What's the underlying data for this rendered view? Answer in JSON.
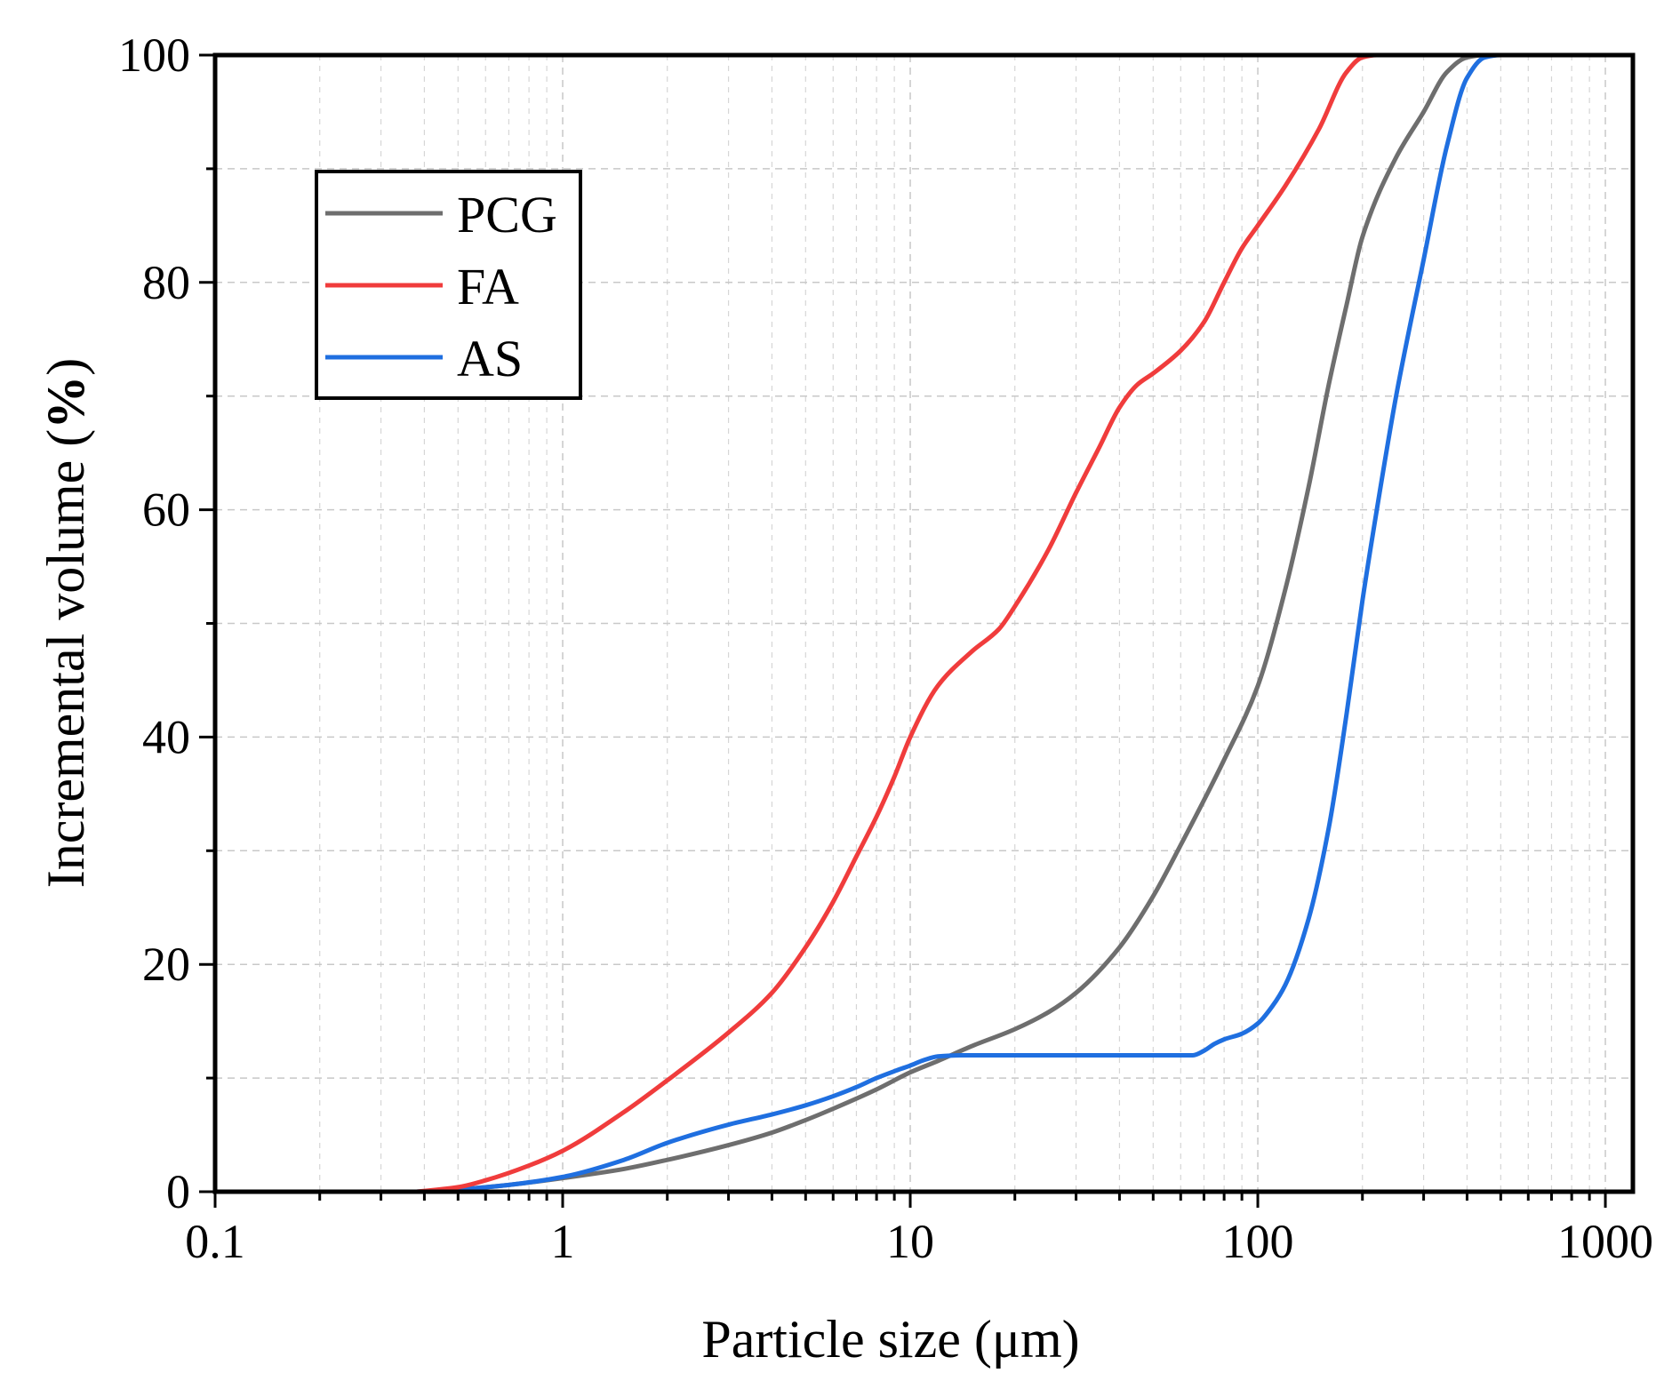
{
  "chart_data": {
    "type": "line",
    "title": "",
    "xlabel": "Particle size (μm)",
    "ylabel_main": "Incremental volume (",
    "ylabel_bold": "%",
    "ylabel_end": ")",
    "xscale": "log",
    "xlim": [
      0.1,
      1200
    ],
    "ylim": [
      0,
      100
    ],
    "grid": true,
    "legend_position": "top-left",
    "x_tick_labels": [
      "0.1",
      "1",
      "10",
      "100",
      "1000"
    ],
    "y_tick_labels": [
      "0",
      "20",
      "40",
      "60",
      "80",
      "100"
    ],
    "series": [
      {
        "name": "PCG",
        "color": "#6e6e6e",
        "x": [
          0.38,
          0.5,
          0.7,
          1,
          1.5,
          2,
          3,
          4,
          5,
          6,
          8,
          10,
          12,
          15,
          20,
          25,
          30,
          40,
          50,
          60,
          80,
          100,
          120,
          140,
          160,
          180,
          200,
          250,
          300,
          350,
          400,
          450,
          500,
          1200
        ],
        "y": [
          0,
          0.2,
          0.6,
          1.2,
          2,
          2.8,
          4.1,
          5.2,
          6.3,
          7.3,
          9,
          10.5,
          11.5,
          12.8,
          14.3,
          15.8,
          17.5,
          21.5,
          26,
          30.5,
          38,
          44.5,
          53,
          62,
          71,
          78,
          84,
          91,
          95,
          98.5,
          99.8,
          100,
          100,
          100
        ]
      },
      {
        "name": "FA",
        "color": "#f03c3c",
        "x": [
          0.38,
          0.5,
          0.6,
          0.8,
          1,
          1.5,
          2,
          3,
          4,
          5,
          6,
          7,
          8,
          9,
          10,
          12,
          15,
          18,
          20,
          25,
          30,
          35,
          40,
          45,
          50,
          60,
          70,
          80,
          90,
          100,
          120,
          150,
          180,
          200,
          220,
          300,
          1200
        ],
        "y": [
          0,
          0.4,
          1,
          2.3,
          3.6,
          7,
          9.8,
          14,
          17.5,
          21.5,
          25.5,
          29.5,
          33,
          36.5,
          40,
          44.5,
          47.5,
          49.5,
          51.5,
          56.5,
          61.5,
          65.5,
          69,
          71,
          72,
          74,
          76.5,
          80,
          83,
          85,
          88.5,
          93.5,
          98.5,
          99.8,
          100,
          100,
          100
        ]
      },
      {
        "name": "AS",
        "color": "#1f6fe0",
        "x": [
          0.38,
          0.5,
          0.7,
          1,
          1.5,
          2,
          3,
          4,
          5,
          6,
          7,
          8,
          9,
          10,
          11,
          12,
          14,
          20,
          40,
          65,
          70,
          75,
          80,
          90,
          100,
          110,
          120,
          140,
          160,
          180,
          200,
          220,
          250,
          300,
          350,
          400,
          450,
          500,
          1200
        ],
        "y": [
          0,
          0.2,
          0.6,
          1.3,
          2.8,
          4.3,
          5.9,
          6.8,
          7.6,
          8.4,
          9.2,
          10,
          10.6,
          11.1,
          11.6,
          11.9,
          12,
          12,
          12,
          12,
          12.4,
          13,
          13.4,
          13.9,
          14.8,
          16.3,
          18.2,
          24,
          32,
          42,
          52,
          60,
          70,
          82,
          92,
          98,
          99.8,
          100,
          100
        ]
      }
    ]
  }
}
